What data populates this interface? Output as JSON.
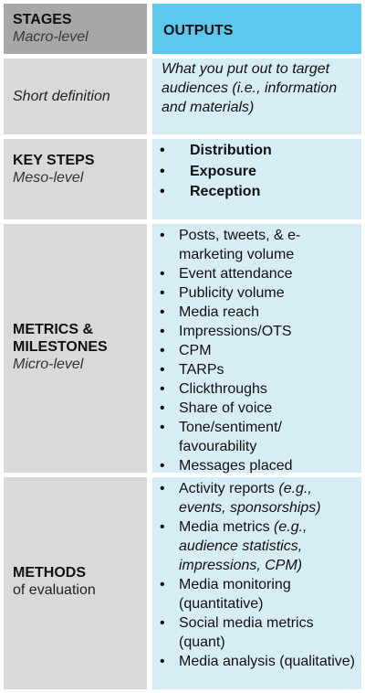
{
  "header": {
    "stages_title": "STAGES",
    "stages_sub": "Macro-level",
    "outputs_title": "OUTPUTS"
  },
  "definition": {
    "label": "Short definition",
    "text": "What you put out to target audiences (i.e., information and materials)"
  },
  "key_steps": {
    "title": "KEY STEPS",
    "sub": "Meso-level",
    "items": [
      "Distribution",
      "Exposure",
      "Reception"
    ]
  },
  "metrics": {
    "title_line1": "METRICS &",
    "title_line2": "MILESTONES",
    "sub": "Micro-level",
    "items": [
      "Posts, tweets, & e-marketing volume",
      "Event attendance",
      "Publicity volume",
      "Media reach",
      "Impressions/OTS",
      "CPM",
      "TARPs",
      "Clickthroughs",
      "Share of voice",
      "Tone/sentiment/ favourability",
      "Messages placed"
    ]
  },
  "methods": {
    "title": "METHODS",
    "sub": "of evaluation",
    "items": [
      {
        "main": "Activity reports",
        "detail": " (e.g., events, sponsorships)"
      },
      {
        "main": "Media metrics",
        "detail": " (e.g., audience statistics, impressions, CPM)"
      },
      {
        "main": "Media monitoring (quantitative)",
        "detail": ""
      },
      {
        "main": "Social media metrics (quant)",
        "detail": ""
      },
      {
        "main": "Media analysis (qualitative)",
        "detail": ""
      }
    ]
  },
  "colors": {
    "header_left": "#a7a7a7",
    "header_right": "#5cc8ee",
    "body_left": "#d9d9d9",
    "body_right": "#d7edf5"
  }
}
